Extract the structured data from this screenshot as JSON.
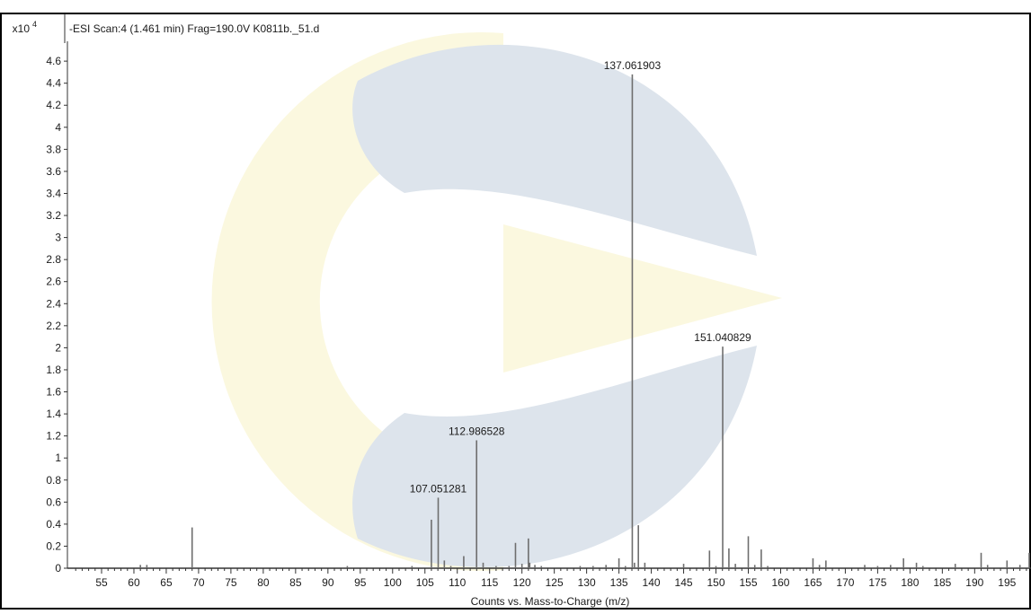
{
  "chart_data": {
    "type": "bar",
    "title": "-ESI Scan:4 (1.461 min) Frag=190.0V K0811b._51.d",
    "y_multiplier_base": "x10",
    "y_multiplier_exponent": "4",
    "xlabel": "Counts vs. Mass-to-Charge (m/z)",
    "ylabel": "",
    "xlim": [
      50.5,
      199.5
    ],
    "ylim": [
      0,
      4.75
    ],
    "x_ticks": [
      "55",
      "60",
      "65",
      "70",
      "75",
      "80",
      "85",
      "90",
      "95",
      "100",
      "105",
      "110",
      "115",
      "120",
      "125",
      "130",
      "135",
      "140",
      "145",
      "150",
      "155",
      "160",
      "165",
      "170",
      "175",
      "180",
      "185",
      "190",
      "195"
    ],
    "y_ticks": [
      "0",
      "0.2",
      "0.4",
      "0.6",
      "0.8",
      "1",
      "1.2",
      "1.4",
      "1.6",
      "1.8",
      "2",
      "2.2",
      "2.4",
      "2.6",
      "2.8",
      "3",
      "3.2",
      "3.4",
      "3.6",
      "3.8",
      "4",
      "4.2",
      "4.4",
      "4.6"
    ],
    "grid": false,
    "legend": "none",
    "peaks": [
      {
        "mz": 61.0,
        "intensity": 0.03
      },
      {
        "mz": 62.0,
        "intensity": 0.03
      },
      {
        "mz": 69.0,
        "intensity": 0.37
      },
      {
        "mz": 93.0,
        "intensity": 0.02
      },
      {
        "mz": 103.0,
        "intensity": 0.02
      },
      {
        "mz": 106.0,
        "intensity": 0.44
      },
      {
        "mz": 107.051281,
        "intensity": 0.64,
        "label": "107.051281"
      },
      {
        "mz": 108.0,
        "intensity": 0.07
      },
      {
        "mz": 109.0,
        "intensity": 0.02
      },
      {
        "mz": 111.0,
        "intensity": 0.11
      },
      {
        "mz": 112.986528,
        "intensity": 1.16,
        "label": "112.986528"
      },
      {
        "mz": 114.0,
        "intensity": 0.05
      },
      {
        "mz": 116.0,
        "intensity": 0.02
      },
      {
        "mz": 118.0,
        "intensity": 0.02
      },
      {
        "mz": 119.0,
        "intensity": 0.23
      },
      {
        "mz": 120.0,
        "intensity": 0.04
      },
      {
        "mz": 121.0,
        "intensity": 0.27
      },
      {
        "mz": 121.2,
        "intensity": 0.05
      },
      {
        "mz": 122.0,
        "intensity": 0.03
      },
      {
        "mz": 123.0,
        "intensity": 0.02
      },
      {
        "mz": 129.0,
        "intensity": 0.02
      },
      {
        "mz": 131.0,
        "intensity": 0.02
      },
      {
        "mz": 133.0,
        "intensity": 0.03
      },
      {
        "mz": 135.0,
        "intensity": 0.09
      },
      {
        "mz": 136.0,
        "intensity": 0.02
      },
      {
        "mz": 137.061903,
        "intensity": 4.48,
        "label": "137.061903"
      },
      {
        "mz": 137.4,
        "intensity": 0.05
      },
      {
        "mz": 138.0,
        "intensity": 0.39
      },
      {
        "mz": 139.0,
        "intensity": 0.05
      },
      {
        "mz": 145.0,
        "intensity": 0.04
      },
      {
        "mz": 149.0,
        "intensity": 0.16
      },
      {
        "mz": 150.0,
        "intensity": 0.02
      },
      {
        "mz": 151.040829,
        "intensity": 2.01,
        "label": "151.040829"
      },
      {
        "mz": 152.0,
        "intensity": 0.18
      },
      {
        "mz": 153.0,
        "intensity": 0.04
      },
      {
        "mz": 155.0,
        "intensity": 0.29
      },
      {
        "mz": 156.0,
        "intensity": 0.03
      },
      {
        "mz": 157.0,
        "intensity": 0.17
      },
      {
        "mz": 158.0,
        "intensity": 0.02
      },
      {
        "mz": 165.0,
        "intensity": 0.09
      },
      {
        "mz": 166.0,
        "intensity": 0.03
      },
      {
        "mz": 167.0,
        "intensity": 0.07
      },
      {
        "mz": 173.0,
        "intensity": 0.03
      },
      {
        "mz": 175.0,
        "intensity": 0.02
      },
      {
        "mz": 177.0,
        "intensity": 0.03
      },
      {
        "mz": 179.0,
        "intensity": 0.09
      },
      {
        "mz": 181.0,
        "intensity": 0.05
      },
      {
        "mz": 182.0,
        "intensity": 0.02
      },
      {
        "mz": 187.0,
        "intensity": 0.04
      },
      {
        "mz": 191.0,
        "intensity": 0.14
      },
      {
        "mz": 192.0,
        "intensity": 0.03
      },
      {
        "mz": 195.0,
        "intensity": 0.07
      },
      {
        "mz": 197.0,
        "intensity": 0.03
      },
      {
        "mz": 199.0,
        "intensity": 0.14
      }
    ]
  },
  "colors": {
    "peak": "#6e6e6e",
    "axis": "#333333",
    "frame": "#000000",
    "watermark_blue": "#dde4ec",
    "watermark_yellow": "#fbf8df"
  }
}
